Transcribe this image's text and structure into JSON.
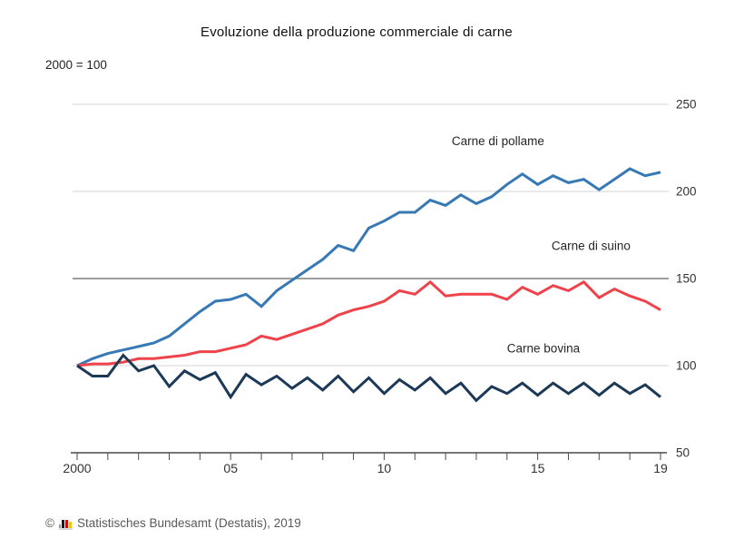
{
  "title": "Evoluzione della produzione commerciale di carne",
  "subtitle": "2000 = 100",
  "footer": {
    "symbol": "©",
    "source": "Statistisches Bundesamt (Destatis), 2019",
    "logo_colors": {
      "gray": "#9a9a9a",
      "black": "#1a1a1a",
      "red": "#d0021b",
      "gold": "#f5c400",
      "base": "#bdbdbd"
    }
  },
  "chart_data": {
    "type": "line",
    "title": "Evoluzione della produzione commerciale di carne",
    "index_note": "2000 = 100",
    "xlim": [
      2000,
      2019
    ],
    "ylim": [
      50,
      250
    ],
    "yticks": [
      50,
      100,
      150,
      200,
      250
    ],
    "emphasized_gridline": 150,
    "grid": "horizontal",
    "legend_position": "inline-annotations",
    "x": [
      2000,
      2000.5,
      2001,
      2001.5,
      2002,
      2002.5,
      2003,
      2003.5,
      2004,
      2004.5,
      2005,
      2005.5,
      2006,
      2006.5,
      2007,
      2007.5,
      2008,
      2008.5,
      2009,
      2009.5,
      2010,
      2010.5,
      2011,
      2011.5,
      2012,
      2012.5,
      2013,
      2013.5,
      2014,
      2014.5,
      2015,
      2015.5,
      2016,
      2016.5,
      2017,
      2017.5,
      2018,
      2018.5,
      2019
    ],
    "series": [
      {
        "name": "Carne di pollame",
        "color": "#3779b5",
        "values": [
          100,
          104,
          107,
          109,
          111,
          113,
          117,
          124,
          131,
          137,
          138,
          141,
          134,
          143,
          149,
          155,
          161,
          169,
          166,
          179,
          183,
          188,
          188,
          195,
          192,
          198,
          193,
          197,
          204,
          210,
          204,
          209,
          205,
          207,
          201,
          207,
          213,
          209,
          211
        ]
      },
      {
        "name": "Carne di suino",
        "color": "#ef434b",
        "values": [
          100,
          101,
          101,
          102,
          104,
          104,
          105,
          106,
          108,
          108,
          110,
          112,
          117,
          115,
          118,
          121,
          124,
          129,
          132,
          134,
          137,
          143,
          141,
          148,
          140,
          141,
          141,
          141,
          138,
          145,
          141,
          146,
          143,
          148,
          139,
          144,
          140,
          137,
          132
        ]
      },
      {
        "name": "Carne bovina",
        "color": "#1c3a57",
        "values": [
          100,
          94,
          94,
          106,
          97,
          100,
          88,
          97,
          92,
          96,
          82,
          95,
          89,
          94,
          87,
          93,
          86,
          94,
          85,
          93,
          84,
          92,
          86,
          93,
          84,
          90,
          80,
          88,
          84,
          90,
          83,
          90,
          84,
          90,
          83,
          90,
          84,
          89,
          82
        ]
      }
    ],
    "xticks_every_year": [
      2000,
      2001,
      2002,
      2003,
      2004,
      2005,
      2006,
      2007,
      2008,
      2009,
      2010,
      2011,
      2012,
      2013,
      2014,
      2015,
      2016,
      2017,
      2018,
      2019
    ],
    "xtick_labels": [
      {
        "year": 2000,
        "label": "2000"
      },
      {
        "year": 2005,
        "label": "05"
      },
      {
        "year": 2010,
        "label": "10"
      },
      {
        "year": 2015,
        "label": "15"
      },
      {
        "year": 2019,
        "label": "19"
      }
    ],
    "annotations": [
      {
        "text": "Carne di pollame",
        "x": 2012.2,
        "y": 226.5
      },
      {
        "text": "Carne di suino",
        "x": 2015.45,
        "y": 166.5
      },
      {
        "text": "Carne bovina",
        "x": 2014.0,
        "y": 107.5
      }
    ],
    "colors": {
      "gridline_light": "#e3e3e3",
      "gridline_dark": "#7d7d7d",
      "axis": "#4a4a4a",
      "tick_label": "#333333",
      "annotation_text": "#262626"
    }
  }
}
